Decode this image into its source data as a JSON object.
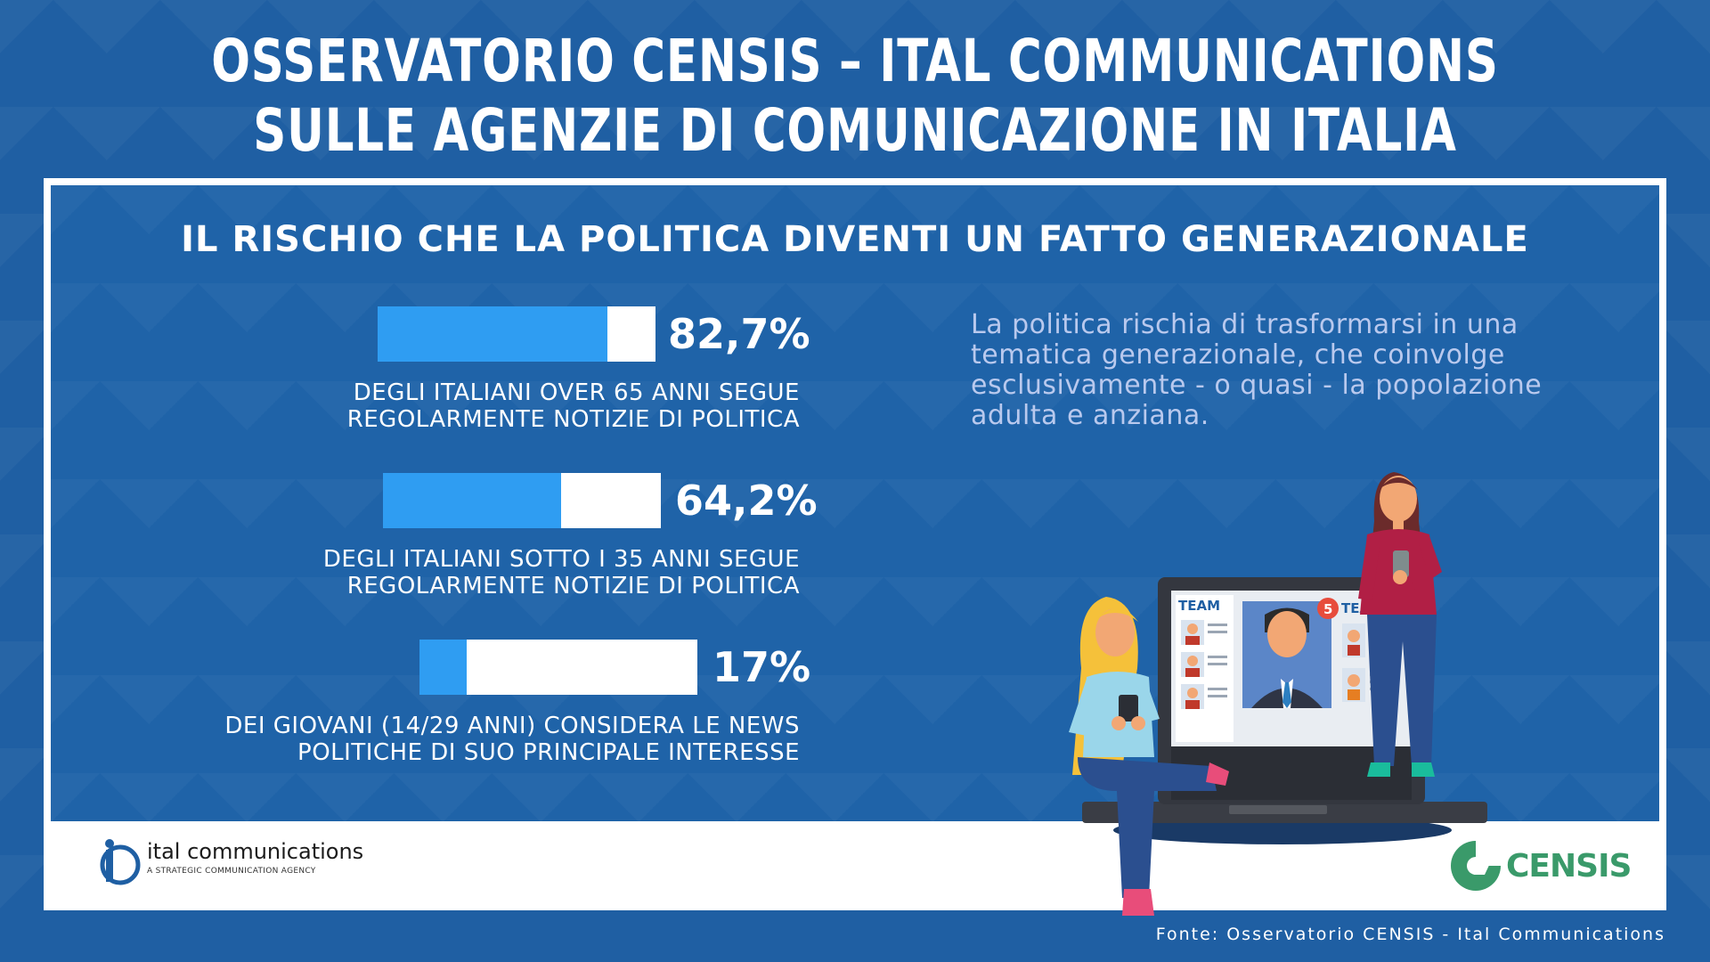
{
  "header": {
    "title_line1": "OSSERVATORIO CENSIS – ITAL COMMUNICATIONS",
    "title_line2": "SULLE AGENZIE DI COMUNICAZIONE IN ITALIA"
  },
  "panel": {
    "subtitle": "IL RISCHIO CHE LA POLITICA DIVENTI UN FATTO GENERAZIONALE"
  },
  "stats": [
    {
      "value_label": "82,7%",
      "value": 82.7,
      "desc_line1": "DEGLI ITALIANI OVER 65 ANNI SEGUE",
      "desc_line2": "REGOLARMENTE NOTIZIE DI POLITICA"
    },
    {
      "value_label": "64,2%",
      "value": 64.2,
      "desc_line1": "DEGLI ITALIANI SOTTO I 35 ANNI SEGUE",
      "desc_line2": "REGOLARMENTE NOTIZIE DI POLITICA"
    },
    {
      "value_label": "17%",
      "value": 17,
      "desc_line1": "DEI GIOVANI (14/29 ANNI) CONSIDERA LE NEWS",
      "desc_line2": "POLITICHE DI SUO PRINCIPALE INTERESSE"
    }
  ],
  "paragraph": {
    "line1": "La politica rischia di trasformarsi in una",
    "line2": "tematica generazionale, che coinvolge",
    "line3": "esclusivamente - o quasi - la popolazione",
    "line4": "adulta e anziana."
  },
  "illustration": {
    "team_label_left": "TEAM",
    "team_label_right": "TEAM",
    "badge_count": "5"
  },
  "logos": {
    "ital_name": "ital communications",
    "ital_tagline": "A STRATEGIC COMMUNICATION AGENCY",
    "censis_name": "CENSIS"
  },
  "footer": {
    "source": "Fonte: Osservatorio CENSIS - Ital Communications"
  },
  "colors": {
    "background": "#1f5fa3",
    "bar_fill": "#2f9df2",
    "bar_track": "#ffffff",
    "paragraph_text": "#b9c9ee",
    "censis_green": "#3a9a6a"
  }
}
